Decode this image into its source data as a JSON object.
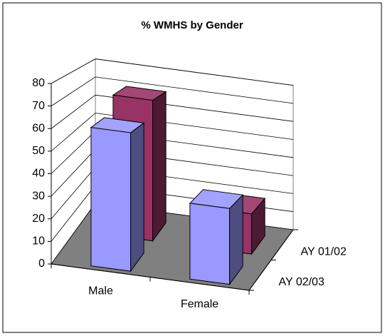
{
  "chart_data": {
    "type": "bar3d",
    "title": "% WMHS by Gender",
    "categories": [
      "Male",
      "Female"
    ],
    "series": [
      {
        "name": "AY 01/02",
        "color": "#993366",
        "values": [
          70,
          20
        ]
      },
      {
        "name": "AY 02/03",
        "color": "#9999ff",
        "values": [
          62,
          34
        ]
      }
    ],
    "ylim": [
      0,
      80
    ],
    "yticks": [
      0,
      10,
      20,
      30,
      40,
      50,
      60,
      70,
      80
    ],
    "grid": true
  }
}
